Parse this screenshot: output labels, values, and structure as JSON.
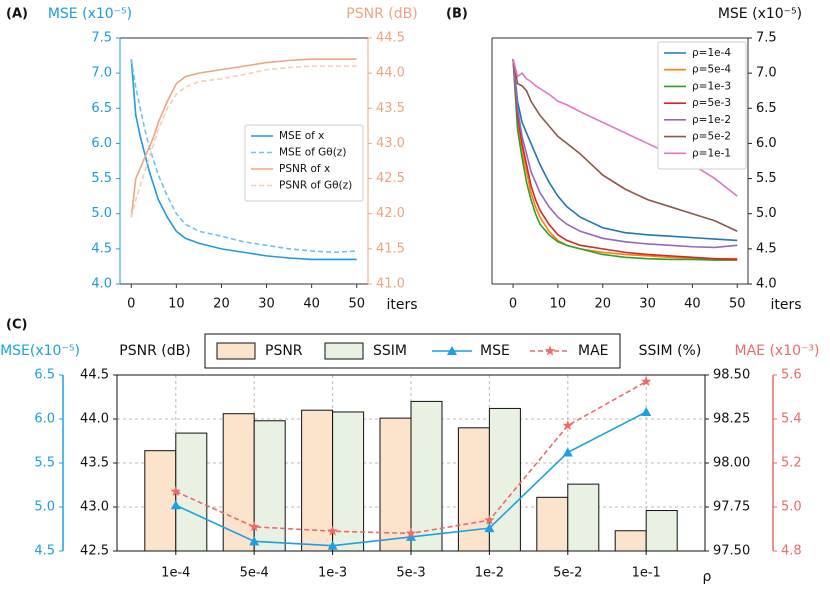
{
  "chart_data": [
    {
      "type": "line",
      "panel": "(A)",
      "ylabel": "MSE (x10⁻⁵)",
      "y2label": "PSNR (dB)",
      "xlabel": "iters",
      "x": [
        0,
        1,
        2,
        3,
        4,
        5,
        6,
        8,
        10,
        12,
        15,
        20,
        25,
        30,
        35,
        40,
        45,
        50
      ],
      "xlim": [
        -2.5,
        52.5
      ],
      "xticks": [
        0,
        10,
        20,
        30,
        40,
        50
      ],
      "ylim": [
        4.0,
        7.5
      ],
      "yticks": [
        {
          "value": 4,
          "label": "4.0"
        },
        4.5,
        {
          "value": 5,
          "label": "5.0"
        },
        5.5,
        {
          "value": 6,
          "label": "6.0"
        },
        6.5,
        {
          "value": 7,
          "label": "7.0"
        },
        7.5
      ],
      "y2lim": [
        41.0,
        44.5
      ],
      "y2ticks": [
        {
          "value": 41,
          "label": "41.0"
        },
        41.5,
        {
          "value": 42,
          "label": "42.0"
        },
        42.5,
        {
          "value": 43,
          "label": "43.0"
        },
        43.5,
        {
          "value": 44,
          "label": "44.0"
        },
        44.5
      ],
      "ycolor": "#1e9be0",
      "y2color": "#eda584",
      "series": [
        {
          "name": "MSE of x",
          "color": "#1e9be0",
          "linestyle": "solid",
          "values": [
            7.2,
            6.4,
            6.1,
            5.85,
            5.6,
            5.4,
            5.2,
            4.95,
            4.75,
            4.65,
            4.58,
            4.5,
            4.45,
            4.4,
            4.37,
            4.35,
            4.35,
            4.35
          ]
        },
        {
          "name": "MSE of Gθ(z)",
          "color": "#6cc3ee",
          "linestyle": "dashed",
          "values": [
            7.2,
            6.8,
            6.5,
            6.2,
            5.95,
            5.75,
            5.55,
            5.25,
            5.0,
            4.85,
            4.75,
            4.68,
            4.6,
            4.55,
            4.5,
            4.47,
            4.45,
            4.47
          ]
        },
        {
          "name": "PSNR of x",
          "color": "#eda584",
          "linestyle": "solid",
          "axis": "y2",
          "values": [
            41.95,
            42.5,
            42.65,
            42.8,
            42.95,
            43.1,
            43.3,
            43.6,
            43.85,
            43.95,
            44.0,
            44.05,
            44.1,
            44.15,
            44.18,
            44.2,
            44.2,
            44.2
          ]
        },
        {
          "name": "PSNR of Gθ(z)",
          "color": "#f5cdb8",
          "linestyle": "dashed",
          "axis": "y2",
          "values": [
            41.95,
            42.2,
            42.4,
            42.6,
            42.8,
            43.0,
            43.2,
            43.5,
            43.7,
            43.8,
            43.88,
            43.92,
            43.98,
            44.05,
            44.08,
            44.1,
            44.1,
            44.1
          ]
        }
      ]
    },
    {
      "type": "line",
      "panel": "(B)",
      "ylabel": "MSE (x10⁻⁵)",
      "xlabel": "iters",
      "x": [
        0,
        1,
        2,
        3,
        4,
        5,
        6,
        8,
        10,
        12,
        15,
        20,
        25,
        30,
        35,
        40,
        45,
        50
      ],
      "xlim": [
        -4.7,
        52.4
      ],
      "xticks": [
        0,
        10,
        20,
        30,
        40,
        50
      ],
      "ylim": [
        4.0,
        7.5
      ],
      "yticks": [
        {
          "value": 4,
          "label": "4.0"
        },
        4.5,
        {
          "value": 5,
          "label": "5.0"
        },
        5.5,
        {
          "value": 6,
          "label": "6.0"
        },
        6.5,
        {
          "value": 7,
          "label": "7.0"
        },
        7.5
      ],
      "series": [
        {
          "name": "ρ=1e-4",
          "color": "#1f77b4",
          "values": [
            7.2,
            6.6,
            6.3,
            6.15,
            6.0,
            5.85,
            5.7,
            5.45,
            5.25,
            5.1,
            4.95,
            4.8,
            4.73,
            4.7,
            4.68,
            4.66,
            4.64,
            4.62
          ]
        },
        {
          "name": "ρ=5e-4",
          "color": "#ff7f0e",
          "values": [
            7.2,
            6.3,
            5.9,
            5.6,
            5.3,
            5.1,
            4.95,
            4.75,
            4.62,
            4.55,
            4.5,
            4.45,
            4.42,
            4.4,
            4.38,
            4.37,
            4.36,
            4.36
          ]
        },
        {
          "name": "ρ=1e-3",
          "color": "#2ca02c",
          "values": [
            7.2,
            6.2,
            5.8,
            5.45,
            5.2,
            5.0,
            4.85,
            4.7,
            4.6,
            4.55,
            4.5,
            4.42,
            4.38,
            4.36,
            4.35,
            4.35,
            4.34,
            4.34
          ]
        },
        {
          "name": "ρ=5e-3",
          "color": "#d62728",
          "values": [
            7.2,
            6.4,
            6.0,
            5.7,
            5.4,
            5.2,
            5.05,
            4.85,
            4.7,
            4.62,
            4.55,
            4.5,
            4.45,
            4.42,
            4.4,
            4.38,
            4.36,
            4.35
          ]
        },
        {
          "name": "ρ=1e-2",
          "color": "#9467bd",
          "values": [
            7.2,
            6.5,
            6.1,
            5.85,
            5.6,
            5.45,
            5.3,
            5.1,
            4.95,
            4.85,
            4.75,
            4.65,
            4.6,
            4.57,
            4.55,
            4.53,
            4.52,
            4.55
          ]
        },
        {
          "name": "ρ=5e-2",
          "color": "#8c564b",
          "values": [
            7.2,
            6.85,
            6.82,
            6.75,
            6.6,
            6.5,
            6.4,
            6.25,
            6.1,
            6.0,
            5.85,
            5.55,
            5.35,
            5.2,
            5.1,
            5.0,
            4.9,
            4.75
          ]
        },
        {
          "name": "ρ=1e-1",
          "color": "#e377c2",
          "values": [
            7.2,
            6.95,
            7.0,
            6.92,
            6.88,
            6.82,
            6.78,
            6.7,
            6.6,
            6.55,
            6.45,
            6.3,
            6.15,
            6.0,
            5.85,
            5.7,
            5.5,
            5.25
          ]
        }
      ]
    },
    {
      "type": "bar",
      "panel": "(C)",
      "xlabel": "ρ",
      "categories": [
        "1e-4",
        "5e-4",
        "1e-3",
        "5e-3",
        "1e-2",
        "5e-2",
        "1e-1"
      ],
      "grid": true,
      "axes": {
        "psnr": {
          "label": "PSNR (dB)",
          "lim": [
            42.5,
            44.5
          ],
          "ticks": [
            42.5,
            {
              "value": 43,
              "label": "43.0"
            },
            43.5,
            {
              "value": 44,
              "label": "44.0"
            },
            44.5
          ]
        },
        "ssim": {
          "label": "SSIM (%)",
          "lim": [
            97.5,
            98.5
          ],
          "ticks": [
            {
              "value": 97.5,
              "label": "97.50"
            },
            97.75,
            {
              "value": 98,
              "label": "98.00"
            },
            98.25,
            {
              "value": 98.5,
              "label": "98.50"
            }
          ]
        },
        "mse": {
          "label": "MSE(x10⁻⁵)",
          "color": "#1ba1e2",
          "lim": [
            4.5,
            6.5
          ],
          "ticks": [
            4.5,
            {
              "value": 5,
              "label": "5.0"
            },
            5.5,
            {
              "value": 6,
              "label": "6.0"
            },
            6.5
          ]
        },
        "mae": {
          "label": "MAE (x10⁻³)",
          "color": "#ee6a6a",
          "lim": [
            4.8,
            5.6
          ],
          "ticks": [
            4.8,
            {
              "value": 5,
              "label": "5.0"
            },
            5.2,
            5.4,
            5.6
          ]
        }
      },
      "series": [
        {
          "name": "PSNR",
          "type": "bar",
          "axis": "psnr",
          "color": "#fce3cc",
          "values": [
            43.64,
            44.06,
            44.1,
            44.01,
            43.9,
            43.11,
            42.73
          ]
        },
        {
          "name": "SSIM",
          "type": "bar",
          "axis": "ssim",
          "color": "#e8f1e2",
          "values": [
            98.17,
            98.24,
            98.29,
            98.35,
            98.31,
            97.88,
            97.73
          ]
        },
        {
          "name": "MSE",
          "type": "line",
          "axis": "mse",
          "color": "#1ba1e2",
          "marker": "triangle",
          "linestyle": "solid",
          "values": [
            5.02,
            4.61,
            4.56,
            4.66,
            4.76,
            5.62,
            6.08
          ]
        },
        {
          "name": "MAE",
          "type": "line",
          "axis": "mae",
          "color": "#ee6a6a",
          "marker": "star",
          "linestyle": "dashed",
          "values": [
            5.07,
            4.91,
            4.89,
            4.88,
            4.94,
            5.37,
            5.57
          ]
        }
      ]
    }
  ]
}
